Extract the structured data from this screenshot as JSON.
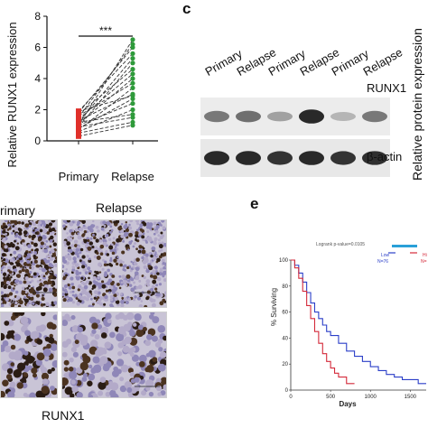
{
  "panel_b": {
    "ylabel": "Relative RUNX1 expression",
    "xticks": [
      "Primary",
      "Relapse"
    ],
    "yticks": [
      "0",
      "2",
      "4",
      "6",
      "8"
    ],
    "significance": "***",
    "colors": {
      "primary": "#e0302a",
      "relapse": "#2e9a3a",
      "line": "#333333"
    }
  },
  "panel_c": {
    "letter": "c",
    "lanes": [
      "Primary",
      "Relapse",
      "Primary",
      "Relapse",
      "Primary",
      "Relapse"
    ],
    "band_labels": [
      "RUNX1",
      "β-actin"
    ],
    "side_label": "Relative protein expression",
    "runx1_intensity": [
      0.55,
      0.6,
      0.35,
      0.95,
      0.25,
      0.55
    ],
    "actin_intensity": [
      0.95,
      0.95,
      0.9,
      0.95,
      0.9,
      0.92
    ]
  },
  "panel_d": {
    "col_labels": [
      "rimary",
      "Relapse"
    ],
    "caption": "RUNX1"
  },
  "panel_e": {
    "letter": "e",
    "annotation": "Logrank p-value=0.0105",
    "legend": [
      {
        "name": "Low",
        "n": "N=76",
        "color": "#2b3fc8"
      },
      {
        "name": "Hi",
        "n": "N=",
        "color": "#d42a3a"
      }
    ],
    "top_bar_color": "#2aa0d8",
    "ylabel": "% Surviving",
    "xlabel": "Days",
    "yticks": [
      "0",
      "20",
      "40",
      "60",
      "80",
      "100"
    ],
    "xticks": [
      "0",
      "500",
      "1000",
      "1500"
    ]
  },
  "chart_data": [
    {
      "type": "scatter",
      "description_kind": "paired",
      "categories": [
        "Primary",
        "Relapse"
      ],
      "ylabel": "Relative RUNX1 expression",
      "ylim": [
        0,
        8
      ],
      "pairs": [
        [
          1.0,
          6.5
        ],
        [
          1.5,
          6.2
        ],
        [
          1.8,
          6.0
        ],
        [
          1.9,
          5.6
        ],
        [
          1.2,
          5.3
        ],
        [
          0.9,
          5.0
        ],
        [
          1.7,
          4.6
        ],
        [
          1.4,
          4.3
        ],
        [
          1.1,
          4.0
        ],
        [
          1.6,
          3.7
        ],
        [
          0.7,
          3.4
        ],
        [
          1.3,
          3.0
        ],
        [
          0.8,
          2.7
        ],
        [
          1.0,
          2.4
        ],
        [
          0.6,
          2.0
        ],
        [
          1.2,
          1.7
        ],
        [
          0.9,
          1.5
        ],
        [
          0.5,
          1.2
        ],
        [
          0.3,
          1.0
        ],
        [
          1.9,
          2.9
        ]
      ]
    },
    {
      "type": "line",
      "title": "",
      "xlabel": "Days",
      "ylabel": "% Surviving",
      "xlim": [
        0,
        1700
      ],
      "ylim": [
        0,
        100
      ],
      "series": [
        {
          "name": "Low",
          "x": [
            0,
            50,
            100,
            150,
            200,
            250,
            300,
            350,
            400,
            450,
            500,
            600,
            700,
            800,
            900,
            1000,
            1100,
            1200,
            1300,
            1400,
            1500,
            1600,
            1700
          ],
          "y": [
            100,
            96,
            90,
            83,
            75,
            67,
            60,
            55,
            50,
            45,
            42,
            36,
            30,
            26,
            22,
            18,
            15,
            12,
            10,
            8,
            8,
            5,
            5
          ]
        },
        {
          "name": "Hi",
          "x": [
            0,
            50,
            100,
            150,
            200,
            250,
            300,
            350,
            400,
            450,
            500,
            550,
            600,
            700,
            800
          ],
          "y": [
            100,
            94,
            86,
            76,
            65,
            55,
            45,
            36,
            28,
            22,
            17,
            13,
            10,
            5,
            5
          ]
        }
      ]
    }
  ]
}
